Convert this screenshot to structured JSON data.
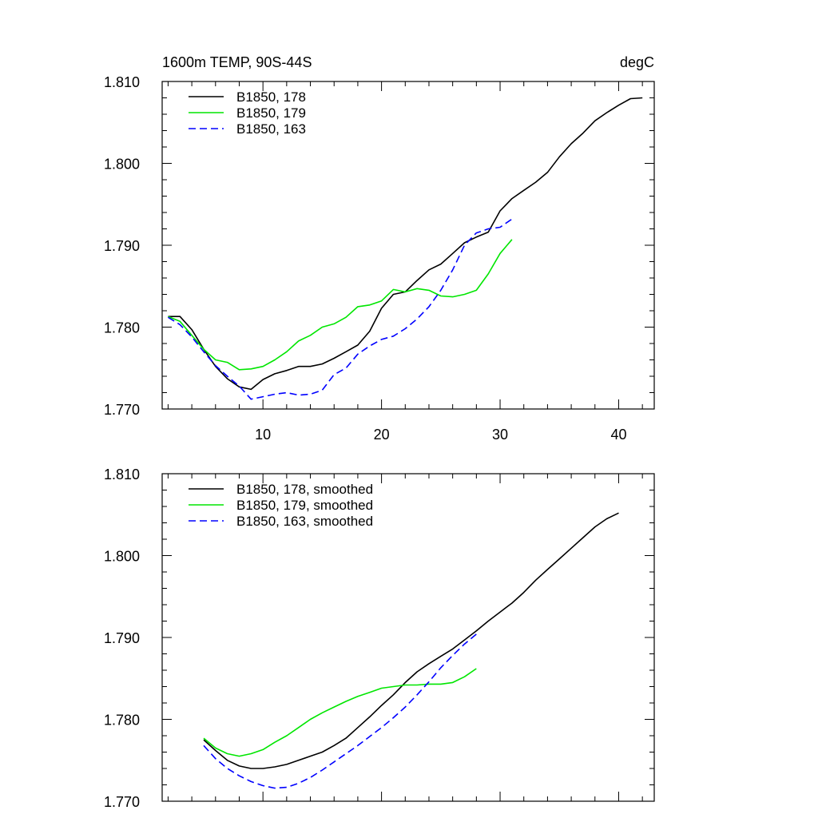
{
  "colors": {
    "s178": "#000000",
    "s179": "#00e600",
    "s163": "#0000ff",
    "axis": "#000000"
  },
  "chart_data": [
    {
      "type": "line",
      "title_left": "1600m TEMP, 90S-44S",
      "title_right": "degC",
      "xlim": [
        1.5,
        43
      ],
      "ylim": [
        1.77,
        1.81
      ],
      "x_ticks": [
        10,
        20,
        30,
        40
      ],
      "x_tick_labels": [
        "10",
        "20",
        "30",
        "40"
      ],
      "y_ticks": [
        1.77,
        1.78,
        1.79,
        1.8,
        1.81
      ],
      "y_tick_labels": [
        "1.770",
        "1.780",
        "1.790",
        "1.800",
        "1.810"
      ],
      "grid": false,
      "legend": "top-left",
      "series": [
        {
          "name": "B1850, 178",
          "color": "#000000",
          "dash": "solid",
          "x": [
            2,
            3,
            4,
            5,
            6,
            7,
            8,
            9,
            10,
            11,
            12,
            13,
            14,
            15,
            16,
            17,
            18,
            19,
            20,
            21,
            22,
            23,
            24,
            25,
            26,
            27,
            28,
            29,
            30,
            31,
            32,
            33,
            34,
            35,
            36,
            37,
            38,
            39,
            40,
            41,
            42
          ],
          "y": [
            1.7813,
            1.7813,
            1.7797,
            1.7773,
            1.7752,
            1.7737,
            1.7727,
            1.7724,
            1.7736,
            1.7743,
            1.7747,
            1.7752,
            1.7752,
            1.7755,
            1.7762,
            1.777,
            1.7778,
            1.7795,
            1.7823,
            1.784,
            1.7843,
            1.7857,
            1.787,
            1.7877,
            1.789,
            1.7903,
            1.791,
            1.7916,
            1.7942,
            1.7957,
            1.7967,
            1.7977,
            1.7989,
            1.8008,
            1.8024,
            1.8037,
            1.8052,
            1.8062,
            1.8071,
            1.8079,
            1.808
          ]
        },
        {
          "name": "B1850, 179",
          "color": "#00e600",
          "dash": "solid",
          "x": [
            2,
            3,
            4,
            5,
            6,
            7,
            8,
            9,
            10,
            11,
            12,
            13,
            14,
            15,
            16,
            17,
            18,
            19,
            20,
            21,
            22,
            23,
            24,
            25,
            26,
            27,
            28,
            29,
            30,
            31
          ],
          "y": [
            1.7813,
            1.7807,
            1.779,
            1.7773,
            1.776,
            1.7757,
            1.7748,
            1.7749,
            1.7752,
            1.776,
            1.777,
            1.7783,
            1.779,
            1.78,
            1.7804,
            1.7812,
            1.7825,
            1.7827,
            1.7832,
            1.7846,
            1.7843,
            1.7847,
            1.7845,
            1.7838,
            1.7837,
            1.784,
            1.7845,
            1.7865,
            1.789,
            1.7907
          ]
        },
        {
          "name": "B1850, 163",
          "color": "#0000ff",
          "dash": "dashed",
          "x": [
            2,
            3,
            4,
            5,
            6,
            7,
            8,
            9,
            10,
            11,
            12,
            13,
            14,
            15,
            16,
            17,
            18,
            19,
            20,
            21,
            22,
            23,
            24,
            25,
            26,
            27,
            28,
            29,
            30,
            31
          ],
          "y": [
            1.7812,
            1.7803,
            1.7788,
            1.777,
            1.7753,
            1.774,
            1.7728,
            1.7712,
            1.7715,
            1.7718,
            1.772,
            1.7717,
            1.7718,
            1.7723,
            1.7742,
            1.775,
            1.7767,
            1.7777,
            1.7785,
            1.7789,
            1.7798,
            1.781,
            1.7825,
            1.7845,
            1.787,
            1.79,
            1.7915,
            1.792,
            1.7922,
            1.7932
          ]
        }
      ]
    },
    {
      "type": "line",
      "xlim": [
        1.5,
        43
      ],
      "ylim": [
        1.77,
        1.81
      ],
      "x_ticks": [
        10,
        20,
        30,
        40
      ],
      "y_ticks": [
        1.77,
        1.78,
        1.79,
        1.8,
        1.81
      ],
      "y_tick_labels": [
        "1.770",
        "1.780",
        "1.790",
        "1.800",
        "1.810"
      ],
      "grid": false,
      "legend": "top-left",
      "series": [
        {
          "name": "B1850, 178, smoothed",
          "color": "#000000",
          "dash": "solid",
          "x": [
            5,
            6,
            7,
            8,
            9,
            10,
            11,
            12,
            13,
            14,
            15,
            16,
            17,
            18,
            19,
            20,
            21,
            22,
            23,
            24,
            25,
            26,
            27,
            28,
            29,
            30,
            31,
            32,
            33,
            34,
            35,
            36,
            37,
            38,
            39,
            40
          ],
          "y": [
            1.7775,
            1.7762,
            1.775,
            1.7743,
            1.774,
            1.774,
            1.7742,
            1.7745,
            1.775,
            1.7755,
            1.776,
            1.7768,
            1.7777,
            1.779,
            1.7803,
            1.7817,
            1.783,
            1.7845,
            1.7858,
            1.7868,
            1.7877,
            1.7886,
            1.7897,
            1.7908,
            1.792,
            1.7931,
            1.7942,
            1.7955,
            1.797,
            1.7983,
            1.7996,
            1.8009,
            1.8022,
            1.8035,
            1.8045,
            1.8052
          ]
        },
        {
          "name": "B1850, 179, smoothed",
          "color": "#00e600",
          "dash": "solid",
          "x": [
            5,
            6,
            7,
            8,
            9,
            10,
            11,
            12,
            13,
            14,
            15,
            16,
            17,
            18,
            19,
            20,
            21,
            22,
            23,
            24,
            25,
            26,
            27,
            28
          ],
          "y": [
            1.7777,
            1.7765,
            1.7758,
            1.7755,
            1.7758,
            1.7763,
            1.7772,
            1.778,
            1.779,
            1.78,
            1.7808,
            1.7815,
            1.7822,
            1.7828,
            1.7833,
            1.7838,
            1.784,
            1.7842,
            1.7842,
            1.7843,
            1.7843,
            1.7845,
            1.7852,
            1.7862
          ]
        },
        {
          "name": "B1850, 163, smoothed",
          "color": "#0000ff",
          "dash": "dashed",
          "x": [
            5,
            6,
            7,
            8,
            9,
            10,
            11,
            12,
            13,
            14,
            15,
            16,
            17,
            18,
            19,
            20,
            21,
            22,
            23,
            24,
            25,
            26,
            27,
            28
          ],
          "y": [
            1.7768,
            1.7752,
            1.774,
            1.7731,
            1.7724,
            1.7719,
            1.7716,
            1.7717,
            1.7722,
            1.7729,
            1.7738,
            1.7748,
            1.7758,
            1.7768,
            1.7779,
            1.779,
            1.7802,
            1.7815,
            1.783,
            1.7846,
            1.7863,
            1.7878,
            1.7892,
            1.7904
          ]
        }
      ]
    }
  ]
}
